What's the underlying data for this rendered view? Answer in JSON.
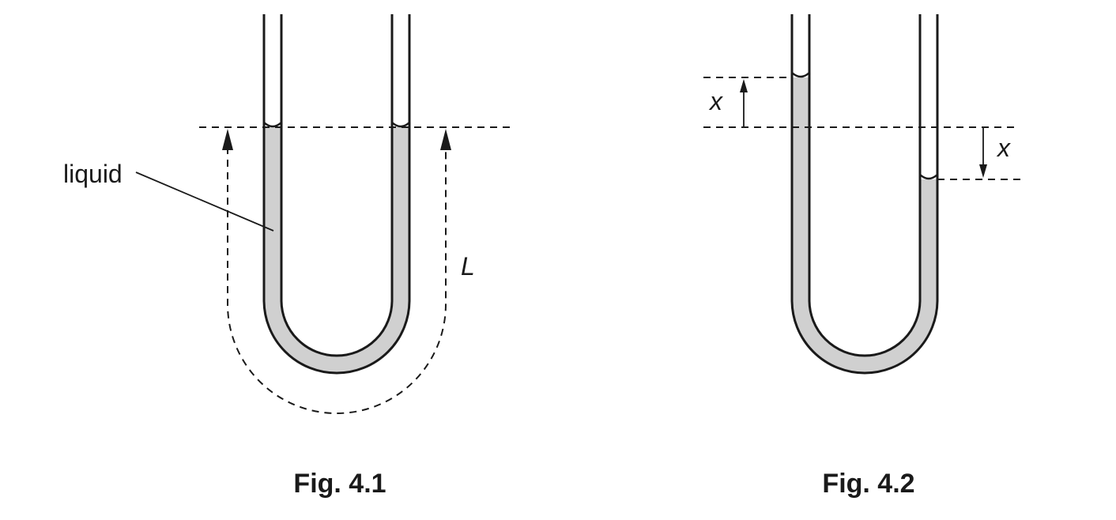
{
  "figure_1": {
    "caption": "Fig. 4.1",
    "liquid_label": "liquid",
    "length_label": "L"
  },
  "figure_2": {
    "caption": "Fig. 4.2",
    "rise_label": "x",
    "fall_label": "x"
  },
  "colors": {
    "liquid": "#d0d0d0",
    "line": "#1a1a1a"
  }
}
